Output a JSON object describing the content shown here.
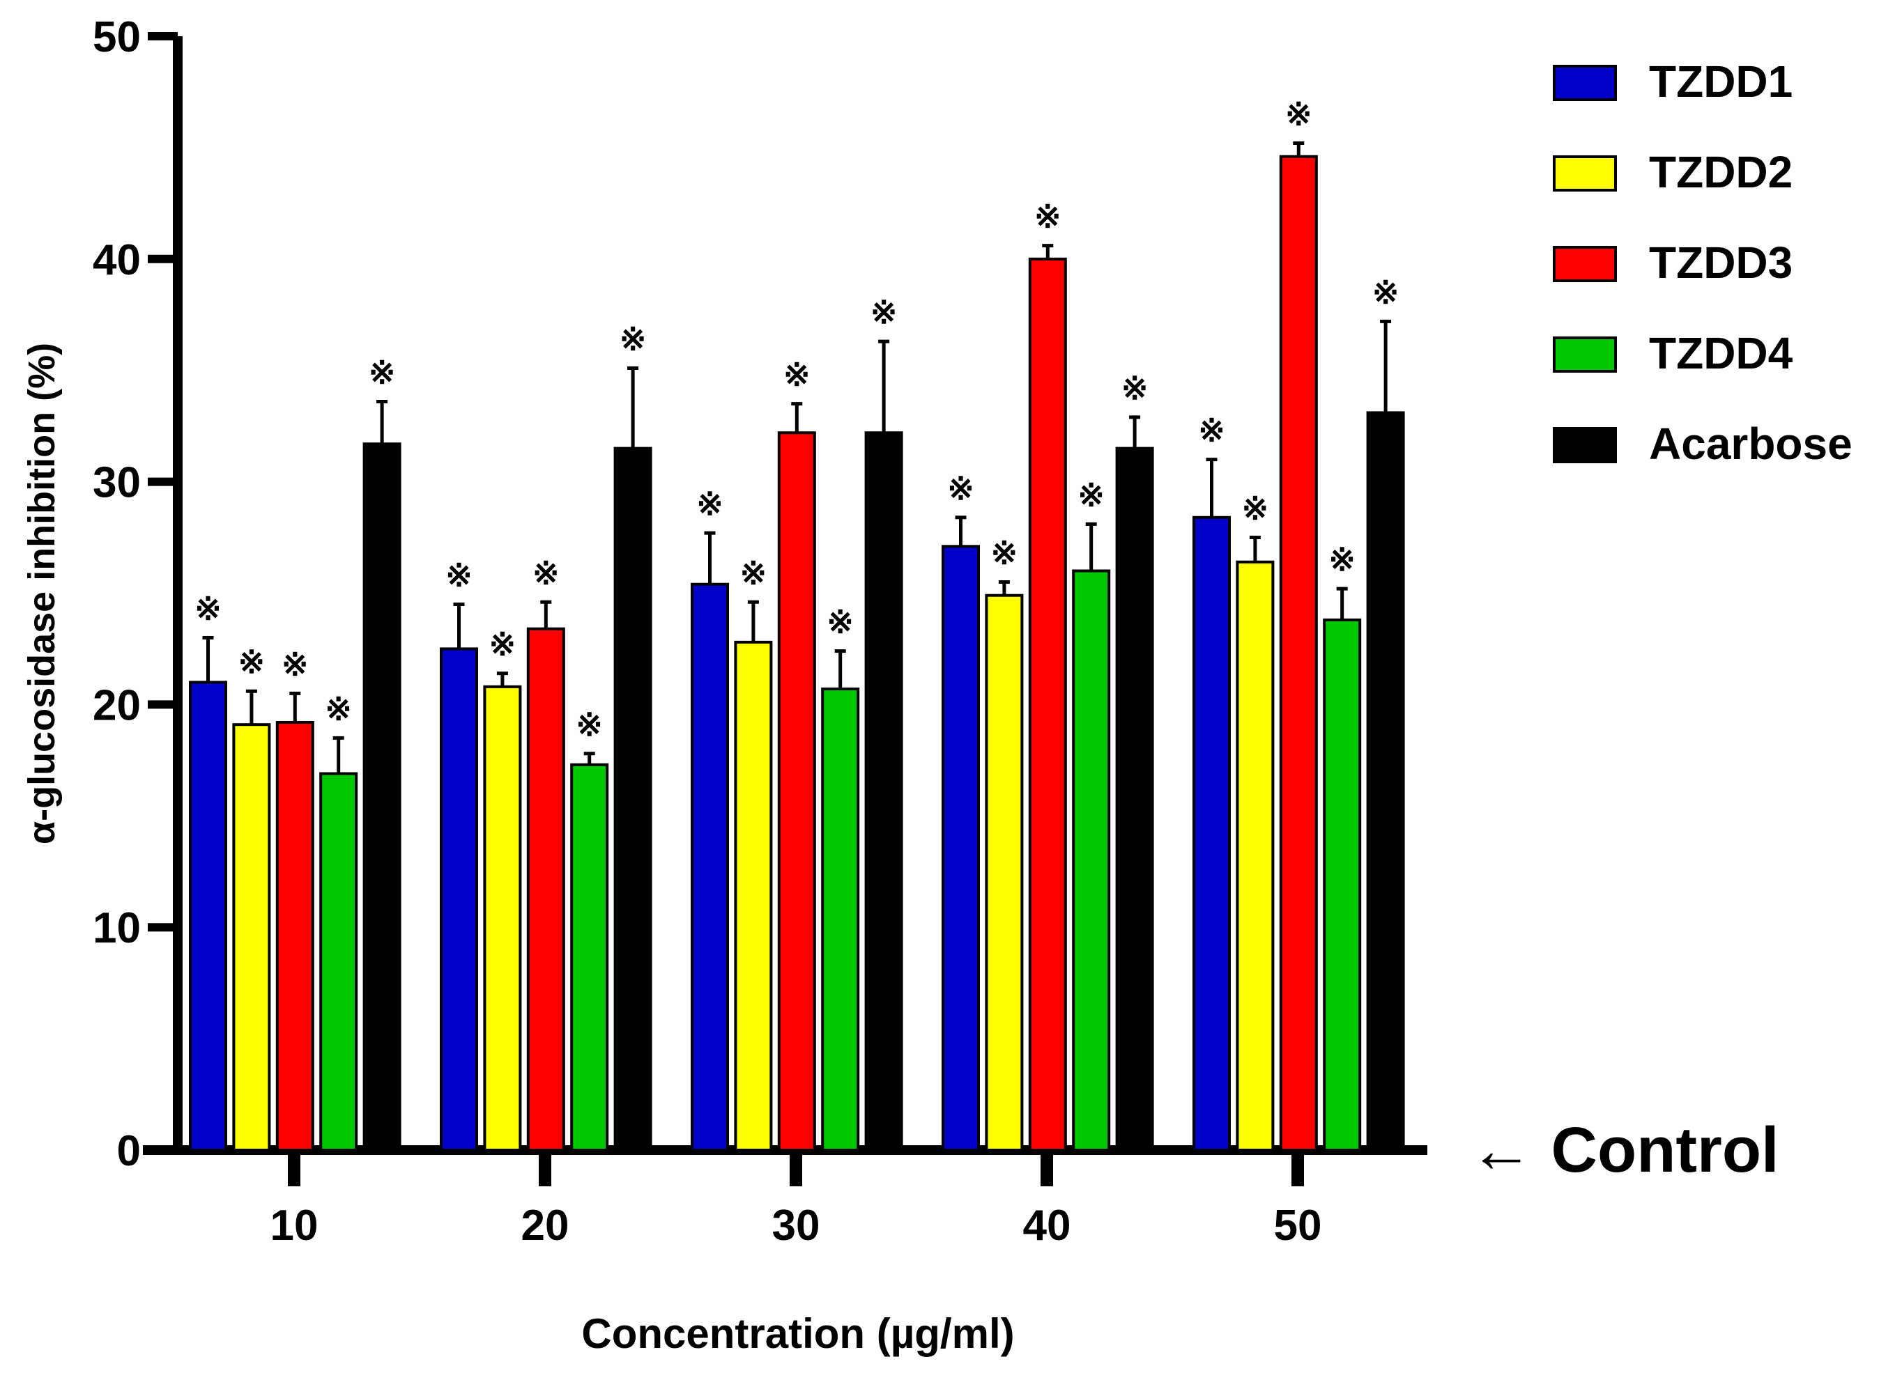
{
  "chart_data": {
    "type": "bar",
    "title": "",
    "xlabel": "Concentration (µg/ml)",
    "ylabel": "α-glucosidase inhibition (%)",
    "ylim": [
      0,
      50
    ],
    "yticks": [
      "0",
      "10",
      "20",
      "30",
      "40",
      "50"
    ],
    "categories": [
      "10",
      "20",
      "30",
      "40",
      "50"
    ],
    "series": [
      {
        "name": "TZDD1",
        "color": "#0000c8",
        "values": [
          21.0,
          22.5,
          25.4,
          27.1,
          28.4
        ],
        "errors": [
          2.0,
          2.0,
          2.3,
          1.3,
          2.6
        ],
        "significant": [
          true,
          true,
          true,
          true,
          true
        ]
      },
      {
        "name": "TZDD2",
        "color": "#ffff00",
        "values": [
          19.1,
          20.8,
          22.8,
          24.9,
          26.4
        ],
        "errors": [
          1.5,
          0.6,
          1.8,
          0.6,
          1.1
        ],
        "significant": [
          true,
          true,
          true,
          true,
          true
        ]
      },
      {
        "name": "TZDD3",
        "color": "#ff0000",
        "values": [
          19.2,
          23.4,
          32.2,
          40.0,
          44.6
        ],
        "errors": [
          1.3,
          1.2,
          1.3,
          0.6,
          0.6
        ],
        "significant": [
          true,
          true,
          true,
          true,
          true
        ]
      },
      {
        "name": "TZDD4",
        "color": "#00c800",
        "values": [
          16.9,
          17.3,
          20.7,
          26.0,
          23.8
        ],
        "errors": [
          1.6,
          0.5,
          1.7,
          2.1,
          1.4
        ],
        "significant": [
          true,
          true,
          true,
          true,
          true
        ]
      },
      {
        "name": "Acarbose",
        "color": "#000000",
        "values": [
          31.7,
          31.5,
          32.2,
          31.5,
          33.1
        ],
        "errors": [
          1.9,
          3.6,
          4.1,
          1.4,
          4.1
        ],
        "significant": [
          true,
          true,
          true,
          true,
          true
        ]
      }
    ],
    "significance_marker": "※",
    "annotation": "← Control",
    "legend_position": "top-right",
    "grid": false
  }
}
